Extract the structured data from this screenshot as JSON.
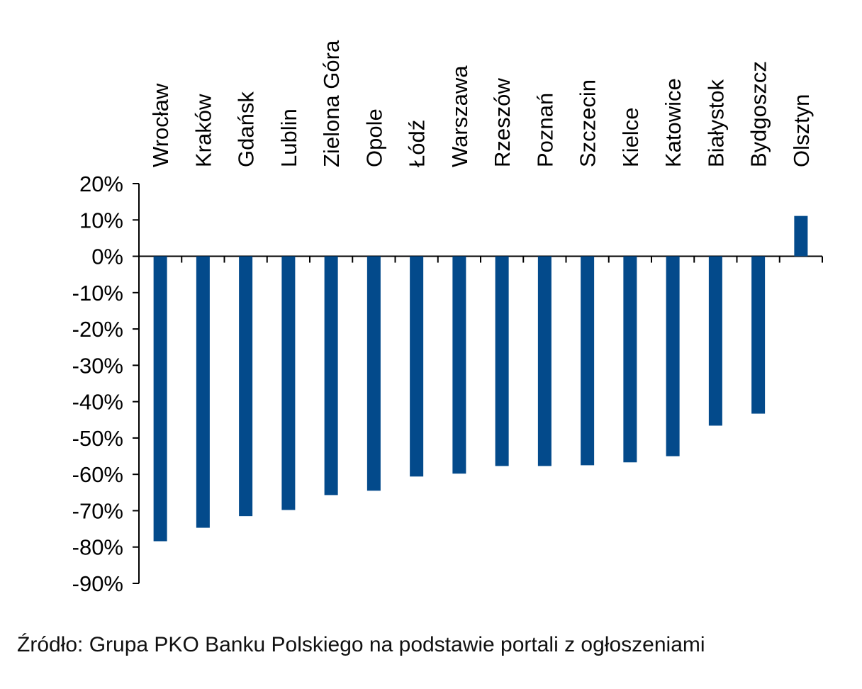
{
  "chart_data": {
    "type": "bar",
    "title": "",
    "xlabel": "",
    "ylabel": "",
    "categories": [
      "Wrocław",
      "Kraków",
      "Gdańsk",
      "Lublin",
      "Zielona Góra",
      "Opole",
      "Łódź",
      "Warszawa",
      "Rzeszów",
      "Poznań",
      "Szczecin",
      "Kielce",
      "Katowice",
      "Białystok",
      "Bydgoszcz",
      "Olsztyn"
    ],
    "values": [
      -78.4,
      -74.7,
      -71.5,
      -69.8,
      -65.7,
      -64.5,
      -60.6,
      -59.8,
      -57.7,
      -57.7,
      -57.5,
      -56.7,
      -55.0,
      -46.6,
      -43.3,
      11.1
    ],
    "ylim": [
      -90,
      20
    ],
    "yticks": [
      20,
      10,
      0,
      -10,
      -20,
      -30,
      -40,
      -50,
      -60,
      -70,
      -80,
      -90
    ],
    "ytick_labels": [
      "20%",
      "10%",
      "0%",
      "-10%",
      "-20%",
      "-30%",
      "-40%",
      "-50%",
      "-60%",
      "-70%",
      "-80%",
      "-90%"
    ],
    "grid": false,
    "bar_color": "#034a8b"
  },
  "source": {
    "label": "Źródło: Grupa PKO Banku Polskiego",
    "rest": " na podstawie portali z ogłoszeniami"
  }
}
